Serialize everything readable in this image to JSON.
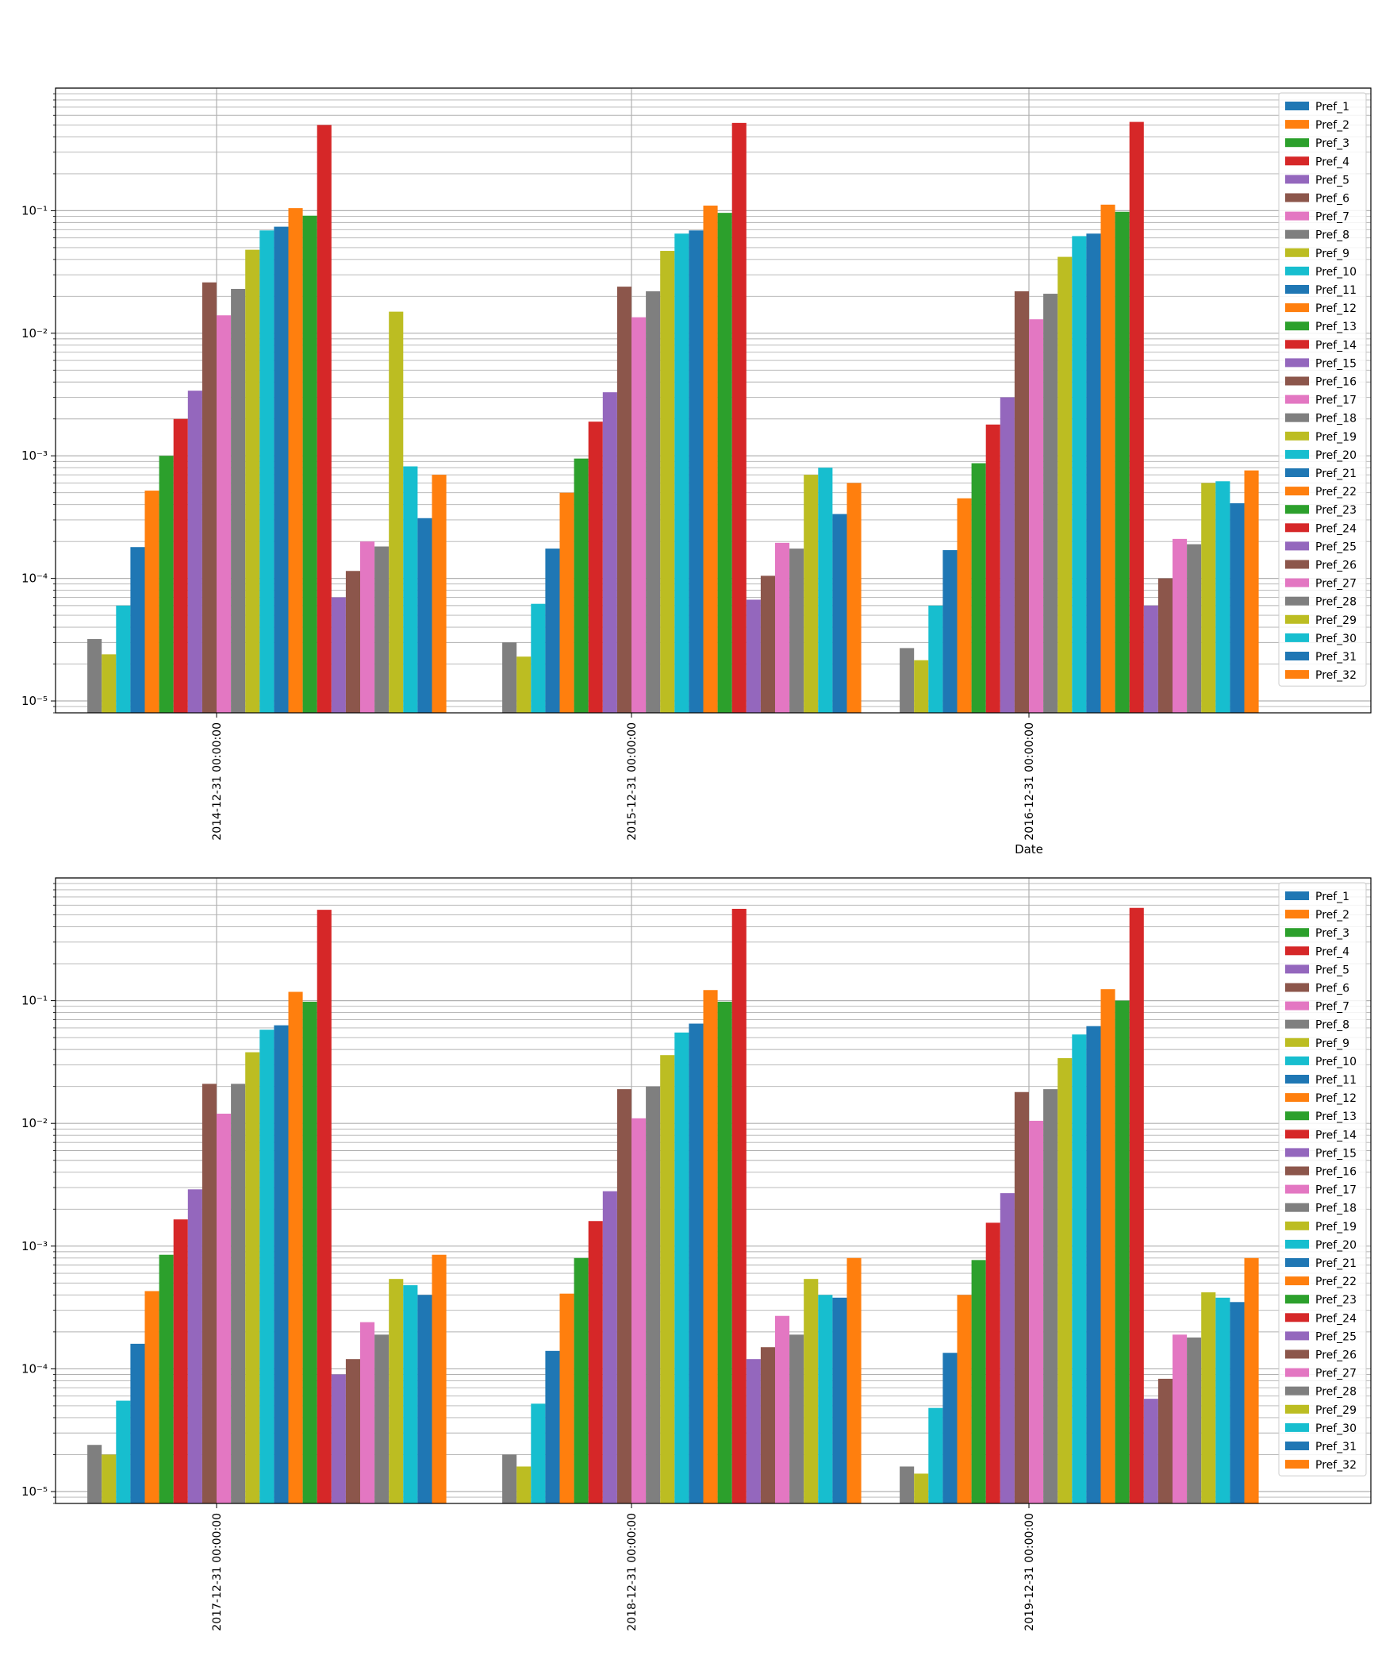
{
  "colors": [
    "#1f77b4",
    "#ff7f0e",
    "#2ca02c",
    "#d62728",
    "#9467bd",
    "#8c564b",
    "#e377c2",
    "#7f7f7f",
    "#bcbd22",
    "#17becf"
  ],
  "chart_data": [
    {
      "type": "bar",
      "yscale": "log",
      "ylim": [
        8e-06,
        1.0
      ],
      "y_tick_labels": [
        "10⁻⁵",
        "10⁻⁴",
        "10⁻³",
        "10⁻²",
        "10⁻¹"
      ],
      "grid": true,
      "legend": "top-right",
      "xlabel": "Date",
      "categories": [
        "2014-12-31 00:00:00",
        "2015-12-31 00:00:00",
        "2016-12-31 00:00:00"
      ],
      "series_names": [
        "Pref_1",
        "Pref_2",
        "Pref_3",
        "Pref_4",
        "Pref_5",
        "Pref_6",
        "Pref_7",
        "Pref_8",
        "Pref_9",
        "Pref_10",
        "Pref_11",
        "Pref_12",
        "Pref_13",
        "Pref_14",
        "Pref_15",
        "Pref_16",
        "Pref_17",
        "Pref_18",
        "Pref_19",
        "Pref_20",
        "Pref_21",
        "Pref_22",
        "Pref_23",
        "Pref_24",
        "Pref_25",
        "Pref_26",
        "Pref_27",
        "Pref_28",
        "Pref_29",
        "Pref_30",
        "Pref_31",
        "Pref_32"
      ],
      "values": [
        [
          0,
          0,
          0,
          0,
          0,
          0,
          0,
          3.2e-05,
          2.4e-05,
          6e-05,
          0.00018,
          0.00052,
          0.001,
          0.002,
          0.0034,
          0.026,
          0.014,
          0.023,
          0.048,
          0.069,
          0.074,
          0.105,
          0.091,
          0.5,
          7e-05,
          0.000115,
          0.0002,
          0.000182,
          0.015,
          0.00082,
          0.00031,
          0.0007
        ],
        [
          0,
          0,
          0,
          0,
          0,
          0,
          0,
          3e-05,
          2.3e-05,
          6.2e-05,
          0.000175,
          0.0005,
          0.00095,
          0.0019,
          0.0033,
          0.024,
          0.0135,
          0.022,
          0.047,
          0.065,
          0.069,
          0.11,
          0.096,
          0.52,
          6.7e-05,
          0.000105,
          0.000195,
          0.000175,
          0.0007,
          0.0008,
          0.000335,
          0.0006
        ],
        [
          0,
          0,
          0,
          0,
          0,
          0,
          0,
          2.7e-05,
          2.15e-05,
          6e-05,
          0.00017,
          0.00045,
          0.00087,
          0.0018,
          0.003,
          0.022,
          0.013,
          0.021,
          0.042,
          0.062,
          0.065,
          0.112,
          0.098,
          0.53,
          6e-05,
          0.0001,
          0.00021,
          0.00019,
          0.0006,
          0.00062,
          0.00041,
          0.00076
        ]
      ]
    },
    {
      "type": "bar",
      "yscale": "log",
      "ylim": [
        8e-06,
        1.0
      ],
      "y_tick_labels": [
        "10⁻⁵",
        "10⁻⁴",
        "10⁻³",
        "10⁻²",
        "10⁻¹"
      ],
      "grid": true,
      "legend": "top-right",
      "categories": [
        "2017-12-31 00:00:00",
        "2018-12-31 00:00:00",
        "2019-12-31 00:00:00"
      ],
      "series_names": [
        "Pref_1",
        "Pref_2",
        "Pref_3",
        "Pref_4",
        "Pref_5",
        "Pref_6",
        "Pref_7",
        "Pref_8",
        "Pref_9",
        "Pref_10",
        "Pref_11",
        "Pref_12",
        "Pref_13",
        "Pref_14",
        "Pref_15",
        "Pref_16",
        "Pref_17",
        "Pref_18",
        "Pref_19",
        "Pref_20",
        "Pref_21",
        "Pref_22",
        "Pref_23",
        "Pref_24",
        "Pref_25",
        "Pref_26",
        "Pref_27",
        "Pref_28",
        "Pref_29",
        "Pref_30",
        "Pref_31",
        "Pref_32"
      ],
      "values": [
        [
          0,
          0,
          0,
          0,
          0,
          0,
          0,
          2.4e-05,
          2e-05,
          5.5e-05,
          0.00016,
          0.00043,
          0.00085,
          0.00165,
          0.0029,
          0.021,
          0.012,
          0.021,
          0.038,
          0.058,
          0.063,
          0.118,
          0.098,
          0.55,
          9e-05,
          0.00012,
          0.00024,
          0.00019,
          0.00054,
          0.00048,
          0.0004,
          0.00085
        ],
        [
          0,
          0,
          0,
          0,
          0,
          0,
          0,
          2e-05,
          1.6e-05,
          5.2e-05,
          0.00014,
          0.00041,
          0.0008,
          0.0016,
          0.0028,
          0.019,
          0.011,
          0.02,
          0.036,
          0.055,
          0.065,
          0.122,
          0.098,
          0.56,
          0.00012,
          0.00015,
          0.00027,
          0.00019,
          0.00054,
          0.0004,
          0.00038,
          0.0008
        ],
        [
          0,
          0,
          0,
          0,
          0,
          0,
          0,
          1.6e-05,
          1.4e-05,
          4.8e-05,
          0.000135,
          0.0004,
          0.00077,
          0.00155,
          0.0027,
          0.018,
          0.0105,
          0.019,
          0.034,
          0.053,
          0.062,
          0.124,
          0.1,
          0.57,
          5.7e-05,
          8.3e-05,
          0.00019,
          0.00018,
          0.00042,
          0.00038,
          0.00035,
          0.0008
        ]
      ]
    }
  ]
}
